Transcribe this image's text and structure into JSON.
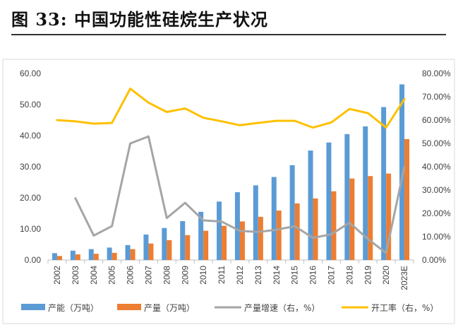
{
  "figure": {
    "title": "图  33:  中国功能性硅烷生产状况"
  },
  "chart_data": {
    "type": "bar",
    "categories": [
      "2002",
      "2003",
      "2004",
      "2005",
      "2006",
      "2007",
      "2008",
      "2009",
      "2010",
      "2011",
      "2012",
      "2013",
      "2014",
      "2015",
      "2016",
      "2017",
      "2018",
      "2019",
      "2020",
      "2023E"
    ],
    "left_axis": {
      "ylim": [
        0,
        60
      ],
      "ticks": [
        "0.00",
        "10.00",
        "20.00",
        "30.00",
        "40.00",
        "50.00",
        "60.00"
      ]
    },
    "right_axis": {
      "ylim": [
        0,
        80
      ],
      "ticks": [
        "0.00%",
        "10.00%",
        "20.00%",
        "30.00%",
        "40.00%",
        "50.00%",
        "60.00%",
        "70.00%",
        "80.00%"
      ]
    },
    "legend_position": "bottom",
    "grid": false,
    "series": [
      {
        "name": "产能（万吨）",
        "type": "bar",
        "axis": "left",
        "color": "#5B9BD5",
        "values": [
          2.2,
          3.0,
          3.5,
          4.0,
          4.8,
          8.2,
          10.3,
          12.5,
          15.5,
          18.8,
          21.8,
          24.0,
          26.7,
          30.5,
          35.2,
          37.8,
          40.5,
          43.0,
          49.2,
          56.5
        ]
      },
      {
        "name": "产量（万吨）",
        "type": "bar",
        "axis": "left",
        "color": "#ED7D31",
        "values": [
          1.3,
          1.8,
          2.0,
          2.3,
          3.5,
          5.3,
          6.4,
          8.0,
          9.4,
          11.0,
          12.4,
          13.9,
          15.9,
          18.2,
          19.8,
          22.1,
          26.2,
          27.0,
          27.8,
          38.9
        ]
      },
      {
        "name": "产量增速（右，%）",
        "type": "line",
        "axis": "right",
        "color": "#A5A5A5",
        "values": [
          null,
          26.5,
          10.5,
          14.5,
          50.0,
          53.0,
          18.0,
          24.5,
          17.0,
          16.5,
          12.5,
          12.0,
          13.0,
          14.5,
          9.5,
          11.0,
          16.0,
          9.0,
          3.0,
          40.0
        ]
      },
      {
        "name": "开工率（右，%）",
        "type": "line",
        "axis": "right",
        "color": "#FFC000",
        "values": [
          60.0,
          59.5,
          58.5,
          58.8,
          73.5,
          67.5,
          63.5,
          65.0,
          61.0,
          59.5,
          57.8,
          58.8,
          59.7,
          59.7,
          56.8,
          59.0,
          64.8,
          63.0,
          56.8,
          69.0
        ]
      }
    ]
  }
}
